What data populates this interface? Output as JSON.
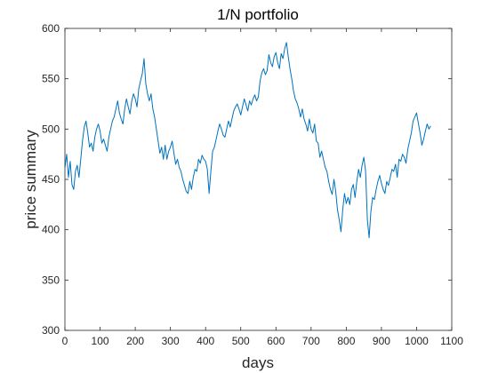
{
  "chart_data": {
    "type": "line",
    "title": "1/N portfolio",
    "xlabel": "days",
    "ylabel": "price summary",
    "xlim": [
      0,
      1100
    ],
    "ylim": [
      300,
      600
    ],
    "xticks": [
      0,
      100,
      200,
      300,
      400,
      500,
      600,
      700,
      800,
      900,
      1000,
      1100
    ],
    "yticks": [
      300,
      350,
      400,
      450,
      500,
      550,
      600
    ],
    "grid": false,
    "line_color": "#0072BD",
    "series": [
      {
        "x": [
          0,
          5,
          10,
          15,
          20,
          25,
          30,
          35,
          40,
          45,
          50,
          55,
          60,
          65,
          70,
          75,
          80,
          85,
          90,
          95,
          100,
          105,
          110,
          115,
          120,
          125,
          130,
          135,
          140,
          145,
          150,
          155,
          160,
          165,
          170,
          175,
          180,
          185,
          190,
          195,
          200,
          205,
          210,
          215,
          220,
          225,
          230,
          235,
          240,
          245,
          250,
          255,
          260,
          265,
          270,
          275,
          280,
          285,
          290,
          295,
          300,
          305,
          310,
          315,
          320,
          325,
          330,
          335,
          340,
          345,
          350,
          355,
          360,
          365,
          370,
          375,
          380,
          385,
          390,
          395,
          400,
          405,
          410,
          415,
          420,
          425,
          430,
          435,
          440,
          445,
          450,
          455,
          460,
          465,
          470,
          475,
          480,
          485,
          490,
          495,
          500,
          505,
          510,
          515,
          520,
          525,
          530,
          535,
          540,
          545,
          550,
          555,
          560,
          565,
          570,
          575,
          580,
          585,
          590,
          595,
          600,
          605,
          610,
          615,
          620,
          625,
          630,
          635,
          640,
          645,
          650,
          655,
          660,
          665,
          670,
          675,
          680,
          685,
          690,
          695,
          700,
          705,
          710,
          715,
          720,
          725,
          730,
          735,
          740,
          745,
          750,
          755,
          760,
          765,
          770,
          775,
          780,
          785,
          790,
          795,
          800,
          805,
          810,
          815,
          820,
          825,
          830,
          835,
          840,
          845,
          850,
          855,
          860,
          865,
          870,
          875,
          880,
          885,
          890,
          895,
          900,
          905,
          910,
          915,
          920,
          925,
          930,
          935,
          940,
          945,
          950,
          955,
          960,
          965,
          970,
          975,
          980,
          985,
          990,
          995,
          1000,
          1005,
          1010,
          1015,
          1020,
          1025,
          1030,
          1035,
          1040
        ],
        "values": [
          462,
          475,
          452,
          468,
          445,
          440,
          458,
          464,
          452,
          470,
          488,
          502,
          508,
          496,
          482,
          486,
          478,
          492,
          500,
          505,
          498,
          486,
          490,
          484,
          478,
          492,
          500,
          508,
          512,
          520,
          528,
          516,
          510,
          505,
          520,
          530,
          522,
          515,
          528,
          535,
          530,
          522,
          540,
          548,
          555,
          570,
          545,
          535,
          528,
          535,
          520,
          512,
          500,
          488,
          476,
          482,
          470,
          484,
          470,
          478,
          482,
          488,
          476,
          465,
          470,
          462,
          458,
          450,
          444,
          438,
          436,
          448,
          440,
          452,
          460,
          458,
          470,
          466,
          474,
          470,
          468,
          460,
          436,
          458,
          478,
          482,
          490,
          498,
          505,
          500,
          494,
          492,
          500,
          508,
          502,
          510,
          518,
          522,
          525,
          520,
          514,
          522,
          530,
          524,
          518,
          528,
          524,
          530,
          534,
          528,
          532,
          548,
          556,
          560,
          554,
          558,
          574,
          566,
          562,
          572,
          576,
          566,
          560,
          575,
          570,
          580,
          586,
          572,
          560,
          550,
          538,
          530,
          526,
          520,
          512,
          520,
          510,
          505,
          498,
          510,
          500,
          496,
          505,
          488,
          486,
          472,
          478,
          470,
          462,
          458,
          448,
          440,
          435,
          450,
          438,
          420,
          410,
          398,
          420,
          436,
          426,
          432,
          425,
          440,
          445,
          432,
          448,
          460,
          452,
          464,
          472,
          458,
          410,
          392,
          418,
          432,
          430,
          440,
          448,
          454,
          446,
          440,
          436,
          448,
          444,
          452,
          460,
          458,
          465,
          452,
          470,
          468,
          475,
          472,
          466,
          480,
          488,
          496,
          508,
          512,
          516,
          506,
          496,
          484,
          490,
          498,
          505,
          500,
          503
        ]
      }
    ]
  }
}
